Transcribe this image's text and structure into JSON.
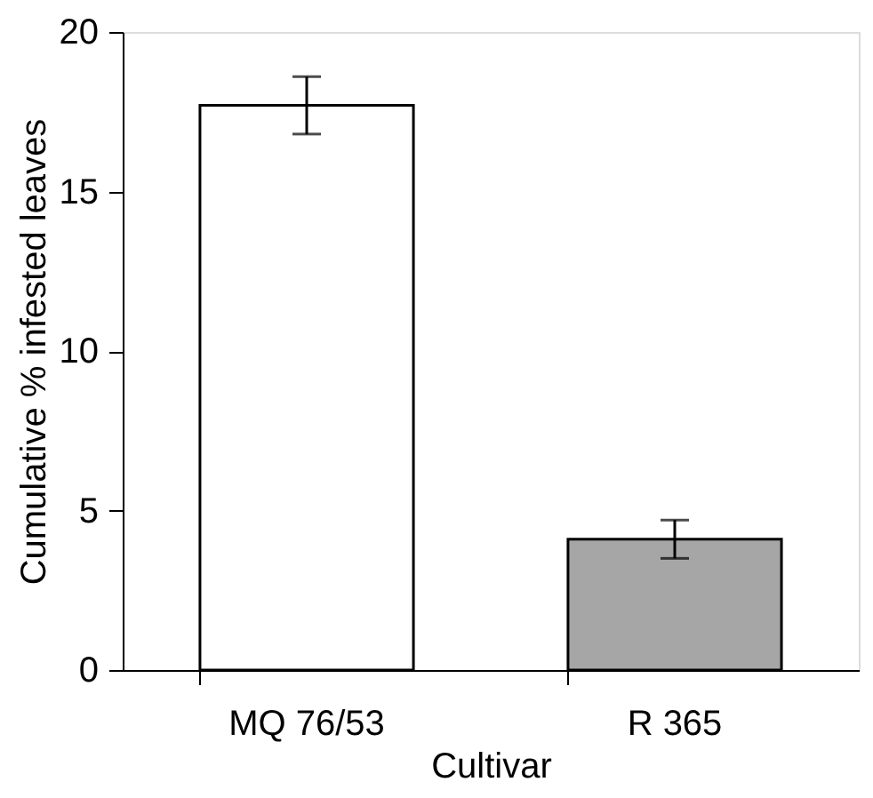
{
  "chart_data": {
    "type": "bar",
    "xlabel": "Cultivar",
    "ylabel": "Cumulative % infested leaves",
    "categories": [
      "MQ 76/53",
      "R 365"
    ],
    "values": [
      17.7,
      4.1
    ],
    "errors": [
      0.9,
      0.6
    ],
    "colors": [
      "#ffffff",
      "#a6a6a6"
    ],
    "ylim": [
      0,
      20
    ],
    "yticks": [
      0,
      5,
      10,
      15,
      20
    ],
    "grid": false
  }
}
